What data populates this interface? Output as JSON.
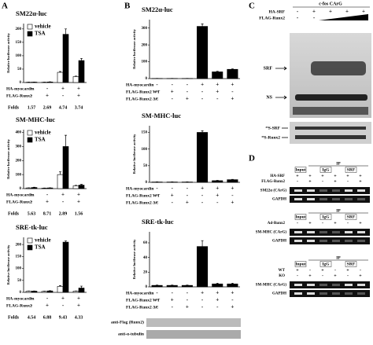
{
  "panel_labels": [
    "A",
    "B",
    "C",
    "D"
  ],
  "chart_data": [
    {
      "type": "bar",
      "title": "SM22α-luc",
      "y_label": "Relative luciferase activity",
      "ylim": [
        0,
        220
      ],
      "yticks": [
        0,
        50,
        100,
        150,
        200
      ],
      "series": [
        {
          "name": "vehicle",
          "color": "#ffffff",
          "values": [
            1,
            1,
            38,
            22
          ],
          "errors": [
            0.5,
            0.5,
            3,
            2
          ]
        },
        {
          "name": "TSA",
          "color": "#000000",
          "values": [
            1.5,
            2,
            180,
            82
          ],
          "errors": [
            0.5,
            0.5,
            20,
            8
          ]
        }
      ],
      "rows": [
        {
          "label": "HA-myocardin",
          "signs": [
            "-",
            "-",
            "+",
            "+"
          ]
        },
        {
          "label": "FLAG-Runx2",
          "signs": [
            "-",
            "+",
            "-",
            "+"
          ]
        }
      ],
      "folds_label": "Folds",
      "folds": [
        1.57,
        2.69,
        4.74,
        3.74
      ]
    },
    {
      "type": "bar",
      "title": "SM-MHC-luc",
      "y_label": "Relative luciferase activity",
      "ylim": [
        0,
        420
      ],
      "yticks": [
        0,
        100,
        200,
        300,
        400
      ],
      "series": [
        {
          "name": "vehicle",
          "color": "#ffffff",
          "values": [
            5,
            3,
            100,
            20
          ],
          "errors": [
            1,
            1,
            20,
            3
          ]
        },
        {
          "name": "TSA",
          "color": "#000000",
          "values": [
            8,
            5,
            300,
            25
          ],
          "errors": [
            2,
            1,
            80,
            5
          ]
        }
      ],
      "rows": [
        {
          "label": "HA-myocardin",
          "signs": [
            "-",
            "-",
            "+",
            "+"
          ]
        },
        {
          "label": "FLAG-Runx2",
          "signs": [
            "-",
            "+",
            "-",
            "+"
          ]
        }
      ],
      "folds_label": "Folds",
      "folds": [
        5.63,
        8.71,
        2.89,
        1.56
      ]
    },
    {
      "type": "bar",
      "title": "SRE-tk-luc",
      "y_label": "Relative luciferase activity",
      "ylim": [
        0,
        230
      ],
      "yticks": [
        0,
        50,
        100,
        150,
        200
      ],
      "series": [
        {
          "name": "vehicle",
          "color": "#ffffff",
          "values": [
            5,
            4,
            25,
            5
          ],
          "errors": [
            1,
            1,
            3,
            1
          ]
        },
        {
          "name": "TSA",
          "color": "#000000",
          "values": [
            5,
            6,
            210,
            18
          ],
          "errors": [
            1,
            1,
            5,
            8
          ]
        }
      ],
      "rows": [
        {
          "label": "HA-myocardin",
          "signs": [
            "-",
            "-",
            "+",
            "+"
          ]
        },
        {
          "label": "FLAG-Runx2",
          "signs": [
            "-",
            "+",
            "-",
            "+"
          ]
        }
      ],
      "folds_label": "Folds",
      "folds": [
        4.54,
        6.88,
        9.43,
        4.33
      ]
    },
    {
      "type": "bar",
      "title": "SM22α-luc",
      "y_label": "Relative luciferase activity",
      "ylim": [
        0,
        350
      ],
      "yticks": [
        0,
        100,
        200,
        300
      ],
      "series": [
        {
          "color": "#000000",
          "values": [
            1,
            1,
            1,
            310,
            40,
            55
          ],
          "errors": [
            0.5,
            0.5,
            0.5,
            15,
            3,
            3
          ]
        }
      ],
      "rows": [
        {
          "label": "HA-myocardin",
          "signs": [
            "-",
            "-",
            "-",
            "+",
            "+",
            "+"
          ]
        },
        {
          "label": "FLAG-Runx2 WT",
          "signs": [
            "-",
            "+",
            "-",
            "-",
            "+",
            "-"
          ]
        },
        {
          "label": "FLAG-Runx2 ΔC",
          "signs": [
            "-",
            "-",
            "+",
            "-",
            "-",
            "+"
          ]
        }
      ]
    },
    {
      "type": "bar",
      "title": "SM-MHC-luc",
      "y_label": "Relative luciferase activity",
      "ylim": [
        0,
        170
      ],
      "yticks": [
        0,
        50,
        100,
        150
      ],
      "series": [
        {
          "color": "#000000",
          "values": [
            1,
            1,
            1,
            150,
            5,
            8
          ],
          "errors": [
            0.5,
            0.5,
            0.5,
            5,
            1,
            1
          ]
        }
      ],
      "rows": [
        {
          "label": "HA-myocardin",
          "signs": [
            "-",
            "-",
            "-",
            "+",
            "+",
            "+"
          ]
        },
        {
          "label": "FLAG-Runx2 WT",
          "signs": [
            "-",
            "+",
            "-",
            "-",
            "+",
            "-"
          ]
        },
        {
          "label": "FLAG-Runx2 ΔC",
          "signs": [
            "-",
            "-",
            "+",
            "-",
            "-",
            "+"
          ]
        }
      ]
    },
    {
      "type": "bar",
      "title": "SRE-tk-luc",
      "y_label": "Relative luciferase activity",
      "ylim": [
        0,
        75
      ],
      "yticks": [
        0,
        20,
        40,
        60
      ],
      "series": [
        {
          "color": "#000000",
          "values": [
            2,
            2,
            2,
            55,
            4,
            4
          ],
          "errors": [
            0.5,
            0.5,
            0.5,
            8,
            1,
            1
          ]
        }
      ],
      "rows": [
        {
          "label": "HA-myocardin",
          "signs": [
            "-",
            "-",
            "-",
            "+",
            "+",
            "+"
          ]
        },
        {
          "label": "FLAG-Runx2 WT",
          "signs": [
            "-",
            "+",
            "-",
            "-",
            "+",
            "-"
          ]
        },
        {
          "label": "FLAG-Runx2 ΔC",
          "signs": [
            "-",
            "-",
            "+",
            "-",
            "-",
            "+"
          ]
        }
      ]
    }
  ],
  "panel_b_blots": [
    "anti-Flag (Runx2)",
    "anti-α-tubulin"
  ],
  "panel_c": {
    "title": "c-fos CArG",
    "rows": [
      {
        "label": "HA-SRF",
        "signs": [
          "-",
          "+",
          "+",
          "+",
          "+"
        ]
      },
      {
        "label": "FLAG-Runx2",
        "signs": [
          "-",
          "-"
        ]
      }
    ],
    "bands": [
      "SRF",
      "NS"
    ],
    "lower_bands": [
      "³⁵S-SRF",
      "³⁵S-Runx2"
    ]
  },
  "panel_d": [
    {
      "ip": "IP",
      "headers": [
        "Input",
        "IgG",
        "SRF"
      ],
      "rows": [
        {
          "label": "HA-SRF",
          "signs": [
            "+",
            "+",
            "+",
            "+",
            "+",
            "+"
          ]
        },
        {
          "label": "FLAG-Runx2",
          "signs": [
            "-",
            "+",
            "-",
            "+",
            "-",
            "+"
          ]
        }
      ],
      "bands": [
        "SM22α (CArG)",
        "GAPDH"
      ]
    },
    {
      "ip": "IP",
      "headers": [
        "Input",
        "IgG",
        "SRF"
      ],
      "rows": [
        {
          "label": "Ad-Runx2",
          "signs": [
            "-",
            "+",
            "-",
            "+",
            "-",
            "+"
          ]
        }
      ],
      "bands": [
        "SM-MHC (CArG)",
        "GAPDH"
      ]
    },
    {
      "ip": "IP",
      "headers": [
        "Input",
        "IgG",
        "SRF"
      ],
      "rows": [
        {
          "label": "WT",
          "signs": [
            "+",
            "-",
            "+",
            "-",
            "+",
            "-"
          ]
        },
        {
          "label": "KO",
          "signs": [
            "-",
            "+",
            "-",
            "+",
            "-",
            "+"
          ]
        }
      ],
      "bands": [
        "SM-MHC (CArG)",
        "GAPDH"
      ]
    }
  ]
}
